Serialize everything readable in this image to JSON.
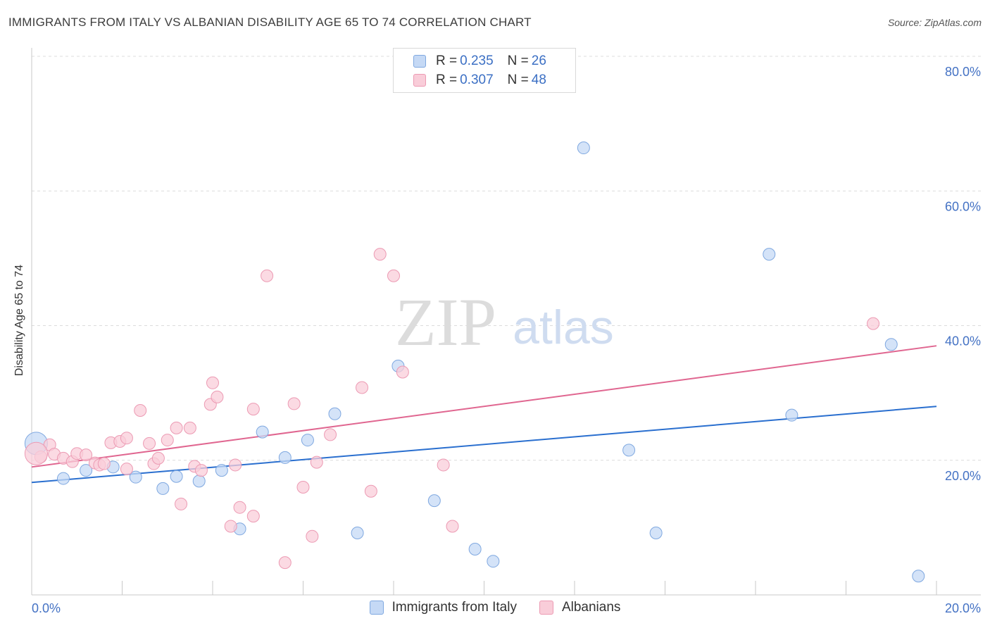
{
  "title": "IMMIGRANTS FROM ITALY VS ALBANIAN DISABILITY AGE 65 TO 74 CORRELATION CHART",
  "source": "Source: ZipAtlas.com",
  "watermark": {
    "zip": "ZIP",
    "atlas": "atlas"
  },
  "legend_top": [
    {
      "r_label": "R = ",
      "r_value": "0.235",
      "n_label": "N = ",
      "n_value": "26",
      "fill": "#c5d9f5",
      "stroke": "#7fa8e0"
    },
    {
      "r_label": "R = ",
      "r_value": "0.307",
      "n_label": "N = ",
      "n_value": "48",
      "fill": "#f9cdd9",
      "stroke": "#ec9ab3"
    }
  ],
  "legend_bottom": [
    {
      "label": "Immigrants from Italy",
      "fill": "#c5d9f5",
      "stroke": "#7fa8e0"
    },
    {
      "label": "Albanians",
      "fill": "#f9cdd9",
      "stroke": "#ec9ab3"
    }
  ],
  "chart_data": {
    "type": "scatter",
    "title": "IMMIGRANTS FROM ITALY VS ALBANIAN DISABILITY AGE 65 TO 74 CORRELATION CHART",
    "xlabel": "",
    "ylabel": "Disability Age 65 to 74",
    "xlim": [
      0,
      20
    ],
    "ylim": [
      0,
      80
    ],
    "x_ticks": [
      {
        "value": 0,
        "label": "0.0%"
      },
      {
        "value": 20,
        "label": "20.0%"
      }
    ],
    "y_ticks": [
      {
        "value": 20,
        "label": "20.0%"
      },
      {
        "value": 40,
        "label": "40.0%"
      },
      {
        "value": 60,
        "label": "60.0%"
      },
      {
        "value": 80,
        "label": "80.0%"
      }
    ],
    "grid": true,
    "legend_placement": "top-center",
    "series": [
      {
        "name": "Immigrants from Italy",
        "color": "#7fa8e0",
        "fill": "#c5d9f5",
        "line_color": "#2a6fcf",
        "trend": [
          [
            0,
            16.7
          ],
          [
            20,
            28.0
          ]
        ],
        "points": [
          [
            0.1,
            22.5,
            "big"
          ],
          [
            0.7,
            17.3
          ],
          [
            1.2,
            18.5
          ],
          [
            1.8,
            19.0
          ],
          [
            2.3,
            17.5
          ],
          [
            2.9,
            15.8
          ],
          [
            3.2,
            17.6
          ],
          [
            3.7,
            16.9
          ],
          [
            4.2,
            18.5
          ],
          [
            4.6,
            9.8
          ],
          [
            5.1,
            24.2
          ],
          [
            5.6,
            20.4
          ],
          [
            6.1,
            23.0
          ],
          [
            6.7,
            26.9
          ],
          [
            8.1,
            34.0
          ],
          [
            8.9,
            14.0
          ],
          [
            9.8,
            6.8
          ],
          [
            10.2,
            5.0
          ],
          [
            7.2,
            9.2
          ],
          [
            12.2,
            66.4
          ],
          [
            13.2,
            21.5
          ],
          [
            13.8,
            9.2
          ],
          [
            16.3,
            50.6
          ],
          [
            16.8,
            26.7
          ],
          [
            19.0,
            37.2
          ],
          [
            19.6,
            2.8
          ]
        ]
      },
      {
        "name": "Albanians",
        "color": "#ec9ab3",
        "fill": "#f9cdd9",
        "line_color": "#e06690",
        "trend": [
          [
            0,
            19.0
          ],
          [
            20,
            37.0
          ]
        ],
        "points": [
          [
            0.2,
            20.5
          ],
          [
            0.4,
            22.3
          ],
          [
            0.5,
            20.9
          ],
          [
            0.7,
            20.3
          ],
          [
            0.9,
            19.8
          ],
          [
            1.0,
            21.0
          ],
          [
            1.2,
            20.8
          ],
          [
            1.4,
            19.6
          ],
          [
            1.5,
            19.3
          ],
          [
            1.6,
            19.5
          ],
          [
            1.75,
            22.6
          ],
          [
            1.95,
            22.8
          ],
          [
            2.1,
            23.3
          ],
          [
            2.1,
            18.7
          ],
          [
            2.4,
            27.4
          ],
          [
            2.6,
            22.5
          ],
          [
            2.7,
            19.5
          ],
          [
            2.8,
            20.3
          ],
          [
            3.0,
            23.0
          ],
          [
            3.2,
            24.8
          ],
          [
            3.3,
            13.5
          ],
          [
            3.5,
            24.8
          ],
          [
            3.6,
            19.1
          ],
          [
            3.75,
            18.5
          ],
          [
            3.95,
            28.3
          ],
          [
            4.0,
            31.5
          ],
          [
            4.1,
            29.4
          ],
          [
            4.4,
            10.2
          ],
          [
            4.5,
            19.3
          ],
          [
            4.6,
            13.0
          ],
          [
            4.9,
            27.6
          ],
          [
            4.9,
            11.7
          ],
          [
            5.2,
            47.4
          ],
          [
            5.6,
            4.8
          ],
          [
            5.8,
            28.4
          ],
          [
            6.0,
            16.0
          ],
          [
            6.2,
            8.7
          ],
          [
            6.3,
            19.7
          ],
          [
            6.6,
            23.8
          ],
          [
            7.3,
            30.8
          ],
          [
            7.5,
            15.4
          ],
          [
            7.7,
            50.6
          ],
          [
            8.0,
            47.4
          ],
          [
            8.2,
            33.1
          ],
          [
            9.1,
            19.3
          ],
          [
            9.3,
            10.2
          ],
          [
            18.6,
            40.3
          ],
          [
            0.1,
            21.0,
            "big"
          ]
        ]
      }
    ]
  }
}
